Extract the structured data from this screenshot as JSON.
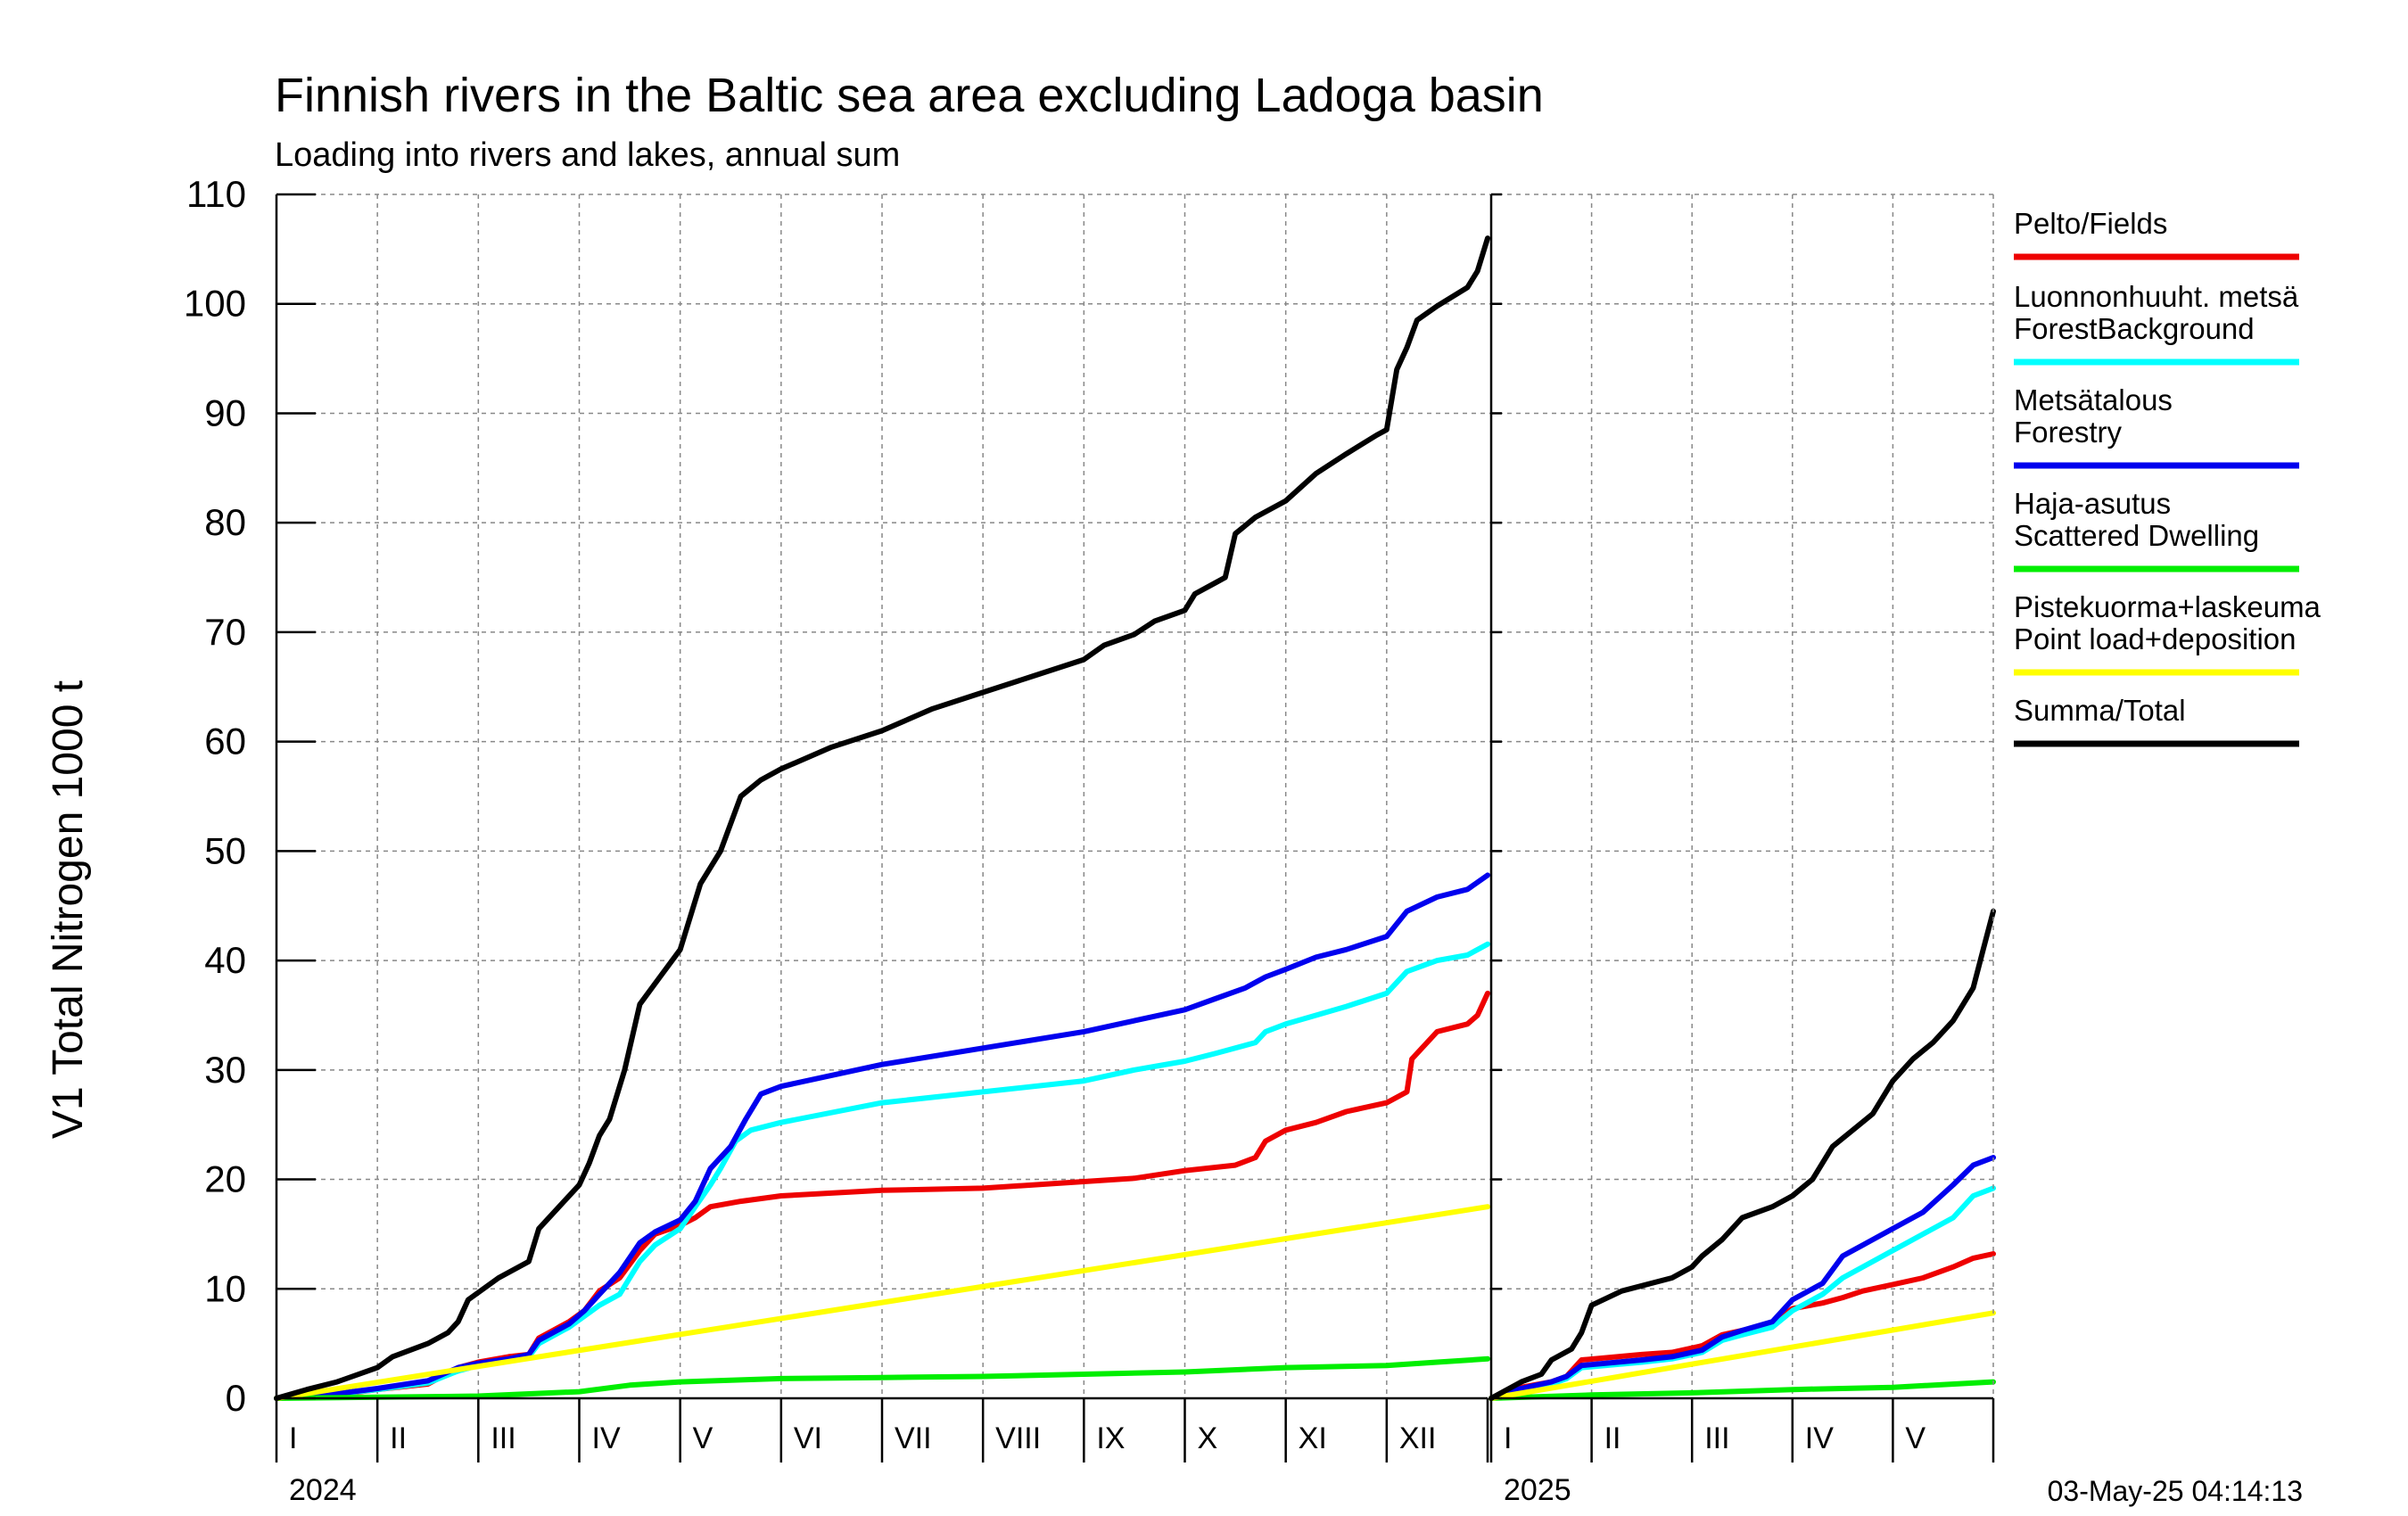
{
  "chart_data": {
    "type": "line",
    "title": "Finnish rivers in the Baltic sea area excluding Ladoga basin",
    "subtitle": "Loading into rivers and lakes, annual sum",
    "ylabel": "V1 Total Nitrogen 1000 t",
    "ylim": [
      0,
      110
    ],
    "yticks": [
      "0",
      "10",
      "20",
      "30",
      "40",
      "50",
      "60",
      "70",
      "80",
      "90",
      "100",
      "110"
    ],
    "grid": true,
    "legend_position": "right",
    "timestamp": "03-May-25 04:14:13",
    "panels": [
      {
        "year": "2024",
        "x_unit": "month",
        "xlim": [
          0,
          12
        ],
        "month_labels": [
          "I",
          "II",
          "III",
          "IV",
          "V",
          "VI",
          "VII",
          "VIII",
          "IX",
          "X",
          "XI",
          "XII"
        ]
      },
      {
        "year": "2025",
        "x_unit": "month",
        "xlim": [
          0,
          5
        ],
        "month_labels": [
          "I",
          "II",
          "III",
          "IV",
          "V"
        ]
      }
    ],
    "series": [
      {
        "key": "fields",
        "name": "Pelto/Fields",
        "color": "#ee0000",
        "points_2024": [
          [
            0,
            0
          ],
          [
            0.5,
            0.2
          ],
          [
            1,
            0.8
          ],
          [
            1.5,
            1.3
          ],
          [
            1.8,
            2.8
          ],
          [
            2.0,
            3.3
          ],
          [
            2.3,
            3.8
          ],
          [
            2.5,
            4.0
          ],
          [
            2.6,
            5.5
          ],
          [
            2.9,
            7.0
          ],
          [
            3.05,
            8.0
          ],
          [
            3.2,
            9.8
          ],
          [
            3.4,
            11.0
          ],
          [
            3.6,
            13.5
          ],
          [
            3.75,
            15.0
          ],
          [
            4.0,
            15.8
          ],
          [
            4.15,
            16.5
          ],
          [
            4.3,
            17.5
          ],
          [
            4.6,
            18.0
          ],
          [
            5.0,
            18.5
          ],
          [
            6.0,
            19.0
          ],
          [
            7.0,
            19.2
          ],
          [
            8.0,
            19.8
          ],
          [
            8.5,
            20.1
          ],
          [
            9.0,
            20.8
          ],
          [
            9.5,
            21.3
          ],
          [
            9.7,
            22.0
          ],
          [
            9.8,
            23.5
          ],
          [
            10.0,
            24.5
          ],
          [
            10.3,
            25.2
          ],
          [
            10.6,
            26.2
          ],
          [
            11.0,
            27.0
          ],
          [
            11.2,
            28.0
          ],
          [
            11.25,
            31.0
          ],
          [
            11.5,
            33.5
          ],
          [
            11.8,
            34.2
          ],
          [
            11.9,
            35.0
          ],
          [
            12.0,
            37.0
          ]
        ],
        "points_2025": [
          [
            0,
            0
          ],
          [
            0.3,
            1.0
          ],
          [
            0.6,
            1.5
          ],
          [
            0.75,
            2.0
          ],
          [
            0.9,
            3.5
          ],
          [
            1.5,
            4.0
          ],
          [
            1.8,
            4.2
          ],
          [
            2.1,
            4.8
          ],
          [
            2.3,
            5.8
          ],
          [
            2.5,
            6.2
          ],
          [
            2.8,
            6.8
          ],
          [
            3.0,
            8.2
          ],
          [
            3.3,
            8.7
          ],
          [
            3.5,
            9.2
          ],
          [
            3.7,
            9.8
          ],
          [
            4.0,
            10.4
          ],
          [
            4.3,
            11.0
          ],
          [
            4.6,
            12.0
          ],
          [
            4.8,
            12.8
          ],
          [
            5.0,
            13.2
          ]
        ]
      },
      {
        "key": "forest_background",
        "name": "Luonnonhuuht. metsä ForestBackground",
        "name_lines": [
          "Luonnonhuuht. metsä",
          "ForestBackground"
        ],
        "color": "#00ffff",
        "points_2024": [
          [
            0,
            0
          ],
          [
            0.5,
            0.3
          ],
          [
            1,
            0.8
          ],
          [
            1.5,
            1.4
          ],
          [
            1.8,
            2.5
          ],
          [
            2.0,
            3.0
          ],
          [
            2.3,
            3.4
          ],
          [
            2.5,
            3.8
          ],
          [
            2.6,
            5.0
          ],
          [
            2.9,
            6.5
          ],
          [
            3.05,
            7.5
          ],
          [
            3.2,
            8.5
          ],
          [
            3.4,
            9.5
          ],
          [
            3.6,
            12.5
          ],
          [
            3.75,
            14.0
          ],
          [
            4.0,
            15.5
          ],
          [
            4.15,
            17.5
          ],
          [
            4.3,
            19.5
          ],
          [
            4.4,
            21.0
          ],
          [
            4.55,
            23.5
          ],
          [
            4.7,
            24.5
          ],
          [
            5.0,
            25.2
          ],
          [
            6.0,
            27.0
          ],
          [
            7.0,
            28.0
          ],
          [
            8.0,
            29.0
          ],
          [
            8.5,
            30.0
          ],
          [
            9.0,
            30.8
          ],
          [
            9.3,
            31.5
          ],
          [
            9.7,
            32.5
          ],
          [
            9.8,
            33.5
          ],
          [
            10.0,
            34.2
          ],
          [
            10.3,
            35.0
          ],
          [
            10.6,
            35.8
          ],
          [
            11.0,
            37.0
          ],
          [
            11.2,
            39.0
          ],
          [
            11.5,
            40.0
          ],
          [
            11.8,
            40.5
          ],
          [
            12.0,
            41.5
          ]
        ],
        "points_2025": [
          [
            0,
            0
          ],
          [
            0.3,
            0.8
          ],
          [
            0.6,
            1.3
          ],
          [
            0.75,
            1.8
          ],
          [
            0.9,
            2.8
          ],
          [
            1.5,
            3.3
          ],
          [
            1.8,
            3.6
          ],
          [
            2.1,
            4.2
          ],
          [
            2.3,
            5.3
          ],
          [
            2.5,
            5.8
          ],
          [
            2.8,
            6.5
          ],
          [
            3.0,
            8.0
          ],
          [
            3.3,
            9.5
          ],
          [
            3.5,
            11.0
          ],
          [
            3.7,
            12.0
          ],
          [
            4.0,
            13.5
          ],
          [
            4.3,
            15.0
          ],
          [
            4.6,
            16.5
          ],
          [
            4.8,
            18.5
          ],
          [
            5.0,
            19.2
          ]
        ]
      },
      {
        "key": "forestry",
        "name": "Metsätalous Forestry",
        "name_lines": [
          "Metsätalous",
          "Forestry"
        ],
        "color": "#0000ee",
        "points_2024": [
          [
            0,
            0
          ],
          [
            0.5,
            0.3
          ],
          [
            1,
            0.9
          ],
          [
            1.5,
            1.6
          ],
          [
            1.8,
            2.8
          ],
          [
            2.0,
            3.2
          ],
          [
            2.3,
            3.6
          ],
          [
            2.5,
            4.0
          ],
          [
            2.6,
            5.3
          ],
          [
            2.9,
            6.8
          ],
          [
            3.05,
            8.0
          ],
          [
            3.2,
            9.5
          ],
          [
            3.4,
            11.5
          ],
          [
            3.6,
            14.2
          ],
          [
            3.75,
            15.2
          ],
          [
            4.0,
            16.3
          ],
          [
            4.15,
            18.0
          ],
          [
            4.3,
            21.0
          ],
          [
            4.5,
            23.0
          ],
          [
            4.65,
            25.5
          ],
          [
            4.8,
            27.8
          ],
          [
            5.0,
            28.5
          ],
          [
            6.0,
            30.5
          ],
          [
            7.0,
            32.0
          ],
          [
            8.0,
            33.5
          ],
          [
            8.5,
            34.5
          ],
          [
            9.0,
            35.5
          ],
          [
            9.3,
            36.5
          ],
          [
            9.6,
            37.5
          ],
          [
            9.8,
            38.5
          ],
          [
            10.0,
            39.2
          ],
          [
            10.3,
            40.3
          ],
          [
            10.6,
            41.0
          ],
          [
            11.0,
            42.2
          ],
          [
            11.2,
            44.5
          ],
          [
            11.5,
            45.8
          ],
          [
            11.8,
            46.5
          ],
          [
            12.0,
            47.8
          ]
        ],
        "points_2025": [
          [
            0,
            0
          ],
          [
            0.3,
            0.9
          ],
          [
            0.6,
            1.5
          ],
          [
            0.75,
            2.0
          ],
          [
            0.9,
            3.0
          ],
          [
            1.5,
            3.5
          ],
          [
            1.8,
            3.8
          ],
          [
            2.1,
            4.4
          ],
          [
            2.3,
            5.6
          ],
          [
            2.5,
            6.2
          ],
          [
            2.8,
            7.0
          ],
          [
            3.0,
            9.0
          ],
          [
            3.3,
            10.5
          ],
          [
            3.5,
            13.0
          ],
          [
            3.7,
            14.0
          ],
          [
            4.0,
            15.5
          ],
          [
            4.3,
            17.0
          ],
          [
            4.6,
            19.5
          ],
          [
            4.8,
            21.3
          ],
          [
            5.0,
            22.0
          ]
        ]
      },
      {
        "key": "scattered_dwelling",
        "name": "Haja-asutus Scattered Dwelling",
        "name_lines": [
          "Haja-asutus",
          "Scattered Dwelling"
        ],
        "color": "#00ee00",
        "points_2024": [
          [
            0,
            0
          ],
          [
            1,
            0.1
          ],
          [
            2,
            0.2
          ],
          [
            3,
            0.6
          ],
          [
            3.5,
            1.2
          ],
          [
            4,
            1.5
          ],
          [
            5,
            1.8
          ],
          [
            6,
            1.9
          ],
          [
            7,
            2.0
          ],
          [
            8,
            2.2
          ],
          [
            9,
            2.4
          ],
          [
            10,
            2.8
          ],
          [
            11,
            3.0
          ],
          [
            11.5,
            3.3
          ],
          [
            12,
            3.6
          ]
        ],
        "points_2025": [
          [
            0,
            0
          ],
          [
            1,
            0.3
          ],
          [
            2,
            0.5
          ],
          [
            3,
            0.8
          ],
          [
            4,
            1.0
          ],
          [
            5,
            1.5
          ]
        ]
      },
      {
        "key": "point_load",
        "name": "Pistekuorma+laskeuma Point load+deposition",
        "name_lines": [
          "Pistekuorma+laskeuma",
          "Point load+deposition"
        ],
        "color": "#ffff00",
        "points_2024": [
          [
            0,
            0
          ],
          [
            12,
            17.5
          ]
        ],
        "points_2025": [
          [
            0,
            0
          ],
          [
            5,
            7.8
          ]
        ]
      },
      {
        "key": "total",
        "name": "Summa/Total",
        "color": "#000000",
        "points_2024": [
          [
            0,
            0
          ],
          [
            0.3,
            0.8
          ],
          [
            0.6,
            1.5
          ],
          [
            1,
            2.8
          ],
          [
            1.15,
            3.8
          ],
          [
            1.5,
            5.0
          ],
          [
            1.7,
            6.0
          ],
          [
            1.8,
            7.0
          ],
          [
            1.9,
            9.0
          ],
          [
            2.2,
            11.0
          ],
          [
            2.5,
            12.5
          ],
          [
            2.6,
            15.5
          ],
          [
            2.8,
            17.5
          ],
          [
            3.0,
            19.5
          ],
          [
            3.1,
            21.5
          ],
          [
            3.2,
            24.0
          ],
          [
            3.3,
            25.5
          ],
          [
            3.45,
            30.0
          ],
          [
            3.6,
            36.0
          ],
          [
            3.8,
            38.5
          ],
          [
            4.0,
            41.0
          ],
          [
            4.2,
            47.0
          ],
          [
            4.4,
            50.0
          ],
          [
            4.6,
            55.0
          ],
          [
            4.8,
            56.5
          ],
          [
            5.0,
            57.5
          ],
          [
            5.5,
            59.5
          ],
          [
            6.0,
            61.0
          ],
          [
            6.5,
            63.0
          ],
          [
            7.0,
            64.5
          ],
          [
            7.5,
            66.0
          ],
          [
            8.0,
            67.5
          ],
          [
            8.2,
            68.8
          ],
          [
            8.5,
            69.8
          ],
          [
            8.7,
            71.0
          ],
          [
            9.0,
            72.0
          ],
          [
            9.1,
            73.5
          ],
          [
            9.3,
            74.5
          ],
          [
            9.4,
            75.0
          ],
          [
            9.5,
            79.0
          ],
          [
            9.7,
            80.5
          ],
          [
            10.0,
            82.0
          ],
          [
            10.3,
            84.5
          ],
          [
            10.6,
            86.3
          ],
          [
            10.9,
            88.0
          ],
          [
            11.0,
            88.5
          ],
          [
            11.1,
            94.0
          ],
          [
            11.2,
            96.0
          ],
          [
            11.3,
            98.5
          ],
          [
            11.5,
            99.8
          ],
          [
            11.8,
            101.5
          ],
          [
            11.9,
            103.0
          ],
          [
            12.0,
            106.0
          ]
        ],
        "points_2025": [
          [
            0,
            0
          ],
          [
            0.3,
            1.5
          ],
          [
            0.5,
            2.2
          ],
          [
            0.6,
            3.5
          ],
          [
            0.8,
            4.5
          ],
          [
            0.9,
            6.0
          ],
          [
            1.0,
            8.5
          ],
          [
            1.3,
            9.8
          ],
          [
            1.8,
            11.0
          ],
          [
            2.0,
            12.0
          ],
          [
            2.1,
            13.0
          ],
          [
            2.3,
            14.5
          ],
          [
            2.5,
            16.5
          ],
          [
            2.8,
            17.5
          ],
          [
            3.0,
            18.5
          ],
          [
            3.2,
            20.0
          ],
          [
            3.4,
            23.0
          ],
          [
            3.6,
            24.5
          ],
          [
            3.8,
            26.0
          ],
          [
            4.0,
            29.0
          ],
          [
            4.2,
            31.0
          ],
          [
            4.4,
            32.5
          ],
          [
            4.6,
            34.5
          ],
          [
            4.8,
            37.5
          ],
          [
            4.9,
            41.0
          ],
          [
            5.0,
            44.5
          ]
        ]
      }
    ]
  }
}
